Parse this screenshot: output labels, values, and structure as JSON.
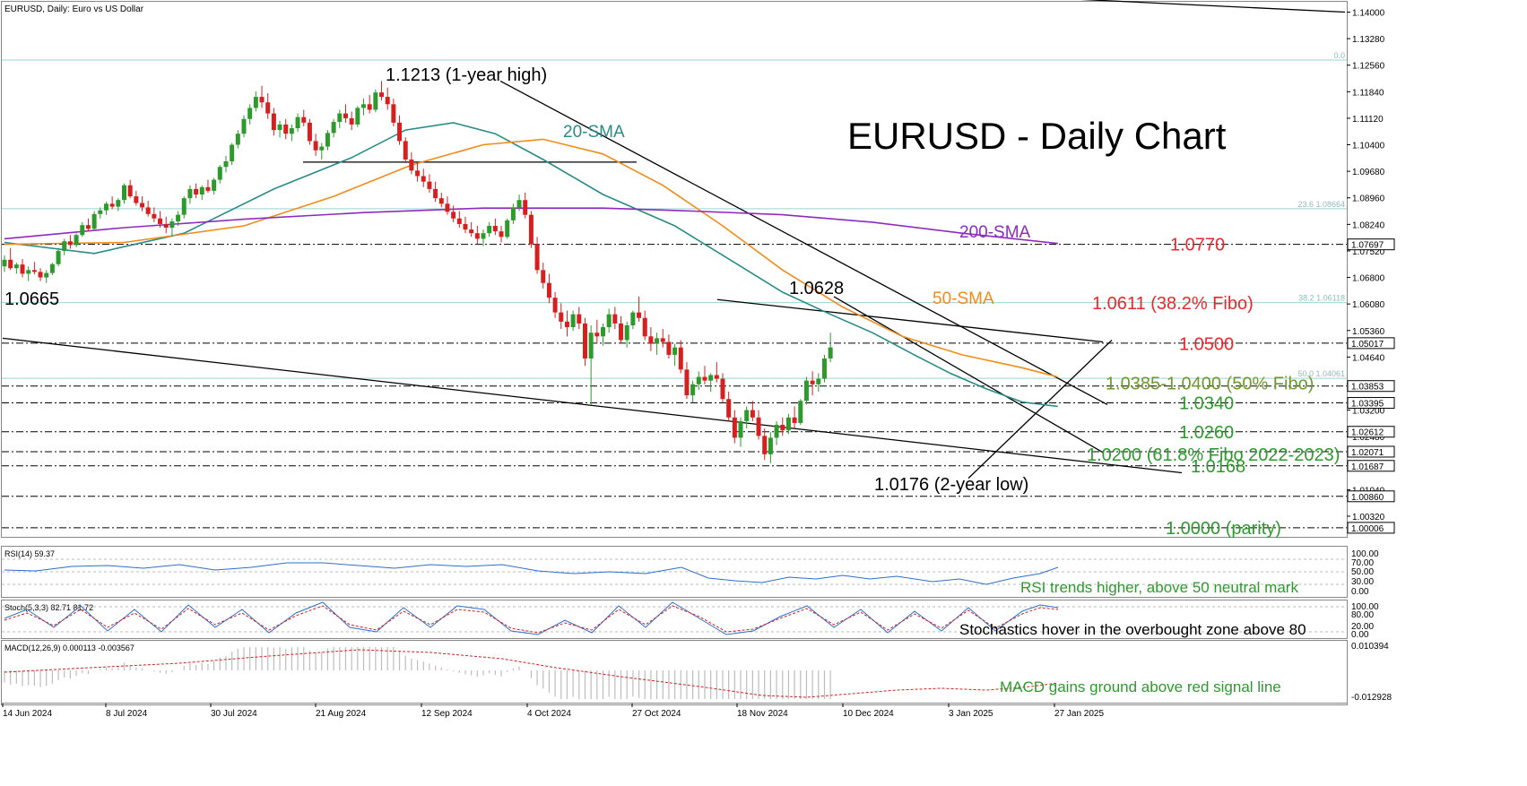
{
  "chart_data": {
    "type": "candlestick",
    "header": "EURUSD, Daily:  Euro vs US Dollar",
    "title": "EURUSD - Daily Chart",
    "x_ticks": [
      "14 Jun 2024",
      "8 Jul 2024",
      "30 Jul 2024",
      "21 Aug 2024",
      "12 Sep 2024",
      "4 Oct 2024",
      "27 Oct 2024",
      "18 Nov 2024",
      "10 Dec 2024",
      "3 Jan 2025",
      "27 Jan 2025"
    ],
    "y_ticks": [
      "1.14000",
      "1.13280",
      "1.12560",
      "1.11840",
      "1.11120",
      "1.10400",
      "1.09680",
      "1.08960",
      "1.08240",
      "1.07520",
      "1.06800",
      "1.06080",
      "1.05360",
      "1.04640",
      "1.03920",
      "1.03200",
      "1.02480",
      "1.01760",
      "1.01040",
      "1.00320"
    ],
    "ylim": [
      0.9976,
      1.1428
    ],
    "price_tags": [
      {
        "label": "1.07697",
        "value": 1.07697
      },
      {
        "label": "1.05017",
        "value": 1.05017
      },
      {
        "label": "1.03853",
        "value": 1.03853
      },
      {
        "label": "1.03395",
        "value": 1.03395
      },
      {
        "label": "1.02612",
        "value": 1.02612
      },
      {
        "label": "1.02071",
        "value": 1.02071
      },
      {
        "label": "1.01687",
        "value": 1.01687
      },
      {
        "label": "1.00860",
        "value": 1.0086
      },
      {
        "label": "1.00006",
        "value": 1.00006
      }
    ],
    "fibo": [
      {
        "label": "0.0",
        "value": 1.127
      },
      {
        "label": "23.6 1.08664",
        "value": 1.08664
      },
      {
        "label": "38.2 1.06118",
        "value": 1.06118
      },
      {
        "label": "50.0 1.04061",
        "value": 1.04061
      }
    ],
    "level_labels": [
      {
        "text": "1.0770",
        "value": 1.077,
        "color": "#e8282d"
      },
      {
        "text": "1.0611 (38.2% Fibo)",
        "value": 1.0611,
        "color": "#e8282d"
      },
      {
        "text": "1.0500",
        "value": 1.05,
        "color": "#e8282d"
      },
      {
        "text": "1.0385-1.0400 (50% Fibo)",
        "value": 1.0393,
        "color": "#6e9a2a"
      },
      {
        "text": "1.0340",
        "value": 1.034,
        "color": "#2e9a2e"
      },
      {
        "text": "1.0260",
        "value": 1.026,
        "color": "#2e9a2e"
      },
      {
        "text": "1.0200 (61.8% Fibo 2022-2023)",
        "value": 1.02,
        "color": "#2e9a2e"
      },
      {
        "text": "1.0168",
        "value": 1.0168,
        "color": "#2e9a2e"
      },
      {
        "text": "1.0000 (parity)",
        "value": 1.0,
        "color": "#2e9a2e"
      }
    ],
    "annotations": [
      {
        "text": "1.1213 (1-year high)"
      },
      {
        "text": "1.0665"
      },
      {
        "text": "1.0628"
      },
      {
        "text": "1.0176 (2-year low)"
      }
    ],
    "series": [
      {
        "name": "20-SMA",
        "color": "#2a8a8a",
        "points": [
          [
            0,
            1.0775
          ],
          [
            15,
            1.0745
          ],
          [
            30,
            1.08
          ],
          [
            45,
            1.092
          ],
          [
            58,
            1.1005
          ],
          [
            67,
            1.108
          ],
          [
            75,
            1.11
          ],
          [
            82,
            1.107
          ],
          [
            90,
            1.1
          ],
          [
            100,
            1.0905
          ],
          [
            112,
            1.082
          ],
          [
            122,
            1.072
          ],
          [
            130,
            1.064
          ],
          [
            138,
            1.058
          ],
          [
            145,
            1.053
          ],
          [
            152,
            1.047
          ],
          [
            158,
            1.042
          ],
          [
            164,
            1.0378
          ],
          [
            170,
            1.0342
          ],
          [
            176,
            1.033
          ]
        ]
      },
      {
        "name": "50-SMA",
        "color": "#f08c19",
        "points": [
          [
            0,
            1.077
          ],
          [
            20,
            1.0775
          ],
          [
            40,
            1.082
          ],
          [
            55,
            1.09
          ],
          [
            68,
            1.0985
          ],
          [
            80,
            1.104
          ],
          [
            90,
            1.1055
          ],
          [
            100,
            1.1015
          ],
          [
            110,
            1.093
          ],
          [
            120,
            1.082
          ],
          [
            130,
            1.07
          ],
          [
            140,
            1.06
          ],
          [
            150,
            1.052
          ],
          [
            160,
            1.047
          ],
          [
            170,
            1.0435
          ],
          [
            176,
            1.041
          ]
        ]
      },
      {
        "name": "200-SMA",
        "color": "#8e2bbf",
        "points": [
          [
            0,
            1.0785
          ],
          [
            20,
            1.0815
          ],
          [
            40,
            1.0838
          ],
          [
            60,
            1.0856
          ],
          [
            80,
            1.0868
          ],
          [
            100,
            1.0868
          ],
          [
            115,
            1.086
          ],
          [
            130,
            1.085
          ],
          [
            145,
            1.083
          ],
          [
            160,
            1.08
          ],
          [
            176,
            1.0772
          ]
        ]
      }
    ],
    "candles": [
      [
        1.071,
        1.074,
        1.0695,
        1.0728
      ],
      [
        1.0728,
        1.076,
        1.07,
        1.0705
      ],
      [
        1.0705,
        1.072,
        1.069,
        1.0715
      ],
      [
        1.0715,
        1.073,
        1.068,
        1.069
      ],
      [
        1.069,
        1.071,
        1.067,
        1.07
      ],
      [
        1.07,
        1.0722,
        1.0688,
        1.0695
      ],
      [
        1.0695,
        1.0705,
        1.067,
        1.068
      ],
      [
        1.068,
        1.07,
        1.0665,
        1.0692
      ],
      [
        1.0692,
        1.072,
        1.0686,
        1.0716
      ],
      [
        1.0716,
        1.076,
        1.071,
        1.0752
      ],
      [
        1.0752,
        1.0785,
        1.074,
        1.0778
      ],
      [
        1.0778,
        1.0795,
        1.0758,
        1.0768
      ],
      [
        1.0768,
        1.08,
        1.0762,
        1.0795
      ],
      [
        1.0795,
        1.083,
        1.079,
        1.0822
      ],
      [
        1.0822,
        1.084,
        1.0805,
        1.0812
      ],
      [
        1.0812,
        1.086,
        1.0808,
        1.0852
      ],
      [
        1.0852,
        1.087,
        1.084,
        1.0862
      ],
      [
        1.0862,
        1.0885,
        1.085,
        1.088
      ],
      [
        1.088,
        1.09,
        1.0865,
        1.0872
      ],
      [
        1.0872,
        1.0895,
        1.086,
        1.089
      ],
      [
        1.089,
        1.0935,
        1.088,
        1.093
      ],
      [
        1.093,
        1.0945,
        1.0895,
        1.09
      ],
      [
        1.09,
        1.0915,
        1.0875,
        1.0882
      ],
      [
        1.0882,
        1.09,
        1.086,
        1.087
      ],
      [
        1.087,
        1.0888,
        1.0845,
        1.0852
      ],
      [
        1.0852,
        1.087,
        1.083,
        1.084
      ],
      [
        1.084,
        1.086,
        1.0815,
        1.0825
      ],
      [
        1.0825,
        1.0845,
        1.08,
        1.0815
      ],
      [
        1.0815,
        1.084,
        1.079,
        1.0832
      ],
      [
        1.0832,
        1.086,
        1.082,
        1.085
      ],
      [
        1.085,
        1.09,
        1.084,
        1.0895
      ],
      [
        1.0895,
        1.093,
        1.088,
        1.092
      ],
      [
        1.092,
        1.0935,
        1.0895,
        1.0905
      ],
      [
        1.0905,
        1.093,
        1.089,
        1.0925
      ],
      [
        1.0925,
        1.0945,
        1.091,
        1.0915
      ],
      [
        1.0915,
        1.095,
        1.0905,
        1.0945
      ],
      [
        1.0945,
        1.0985,
        1.0935,
        1.098
      ],
      [
        1.098,
        1.101,
        1.0965,
        1.0995
      ],
      [
        1.0995,
        1.1045,
        1.0985,
        1.104
      ],
      [
        1.104,
        1.108,
        1.103,
        1.107
      ],
      [
        1.107,
        1.112,
        1.106,
        1.111
      ],
      [
        1.111,
        1.115,
        1.1095,
        1.114
      ],
      [
        1.114,
        1.1185,
        1.113,
        1.117
      ],
      [
        1.117,
        1.12,
        1.114,
        1.1155
      ],
      [
        1.1155,
        1.118,
        1.111,
        1.1125
      ],
      [
        1.1125,
        1.114,
        1.1065,
        1.108
      ],
      [
        1.108,
        1.1105,
        1.106,
        1.1095
      ],
      [
        1.1095,
        1.111,
        1.1055,
        1.107
      ],
      [
        1.107,
        1.1095,
        1.105,
        1.1085
      ],
      [
        1.1085,
        1.1125,
        1.1075,
        1.1115
      ],
      [
        1.1115,
        1.1135,
        1.109,
        1.11
      ],
      [
        1.11,
        1.111,
        1.104,
        1.105
      ],
      [
        1.105,
        1.107,
        1.101,
        1.1025
      ],
      [
        1.1025,
        1.1045,
        1.1,
        1.1035
      ],
      [
        1.1035,
        1.108,
        1.1025,
        1.1072
      ],
      [
        1.1072,
        1.111,
        1.106,
        1.1102
      ],
      [
        1.1102,
        1.1135,
        1.1085,
        1.1125
      ],
      [
        1.1125,
        1.115,
        1.11,
        1.1112
      ],
      [
        1.1112,
        1.113,
        1.108,
        1.1095
      ],
      [
        1.1095,
        1.1145,
        1.1088,
        1.114
      ],
      [
        1.114,
        1.1165,
        1.112,
        1.115
      ],
      [
        1.115,
        1.1175,
        1.1125,
        1.1135
      ],
      [
        1.1135,
        1.119,
        1.1128,
        1.1182
      ],
      [
        1.1182,
        1.1213,
        1.116,
        1.117
      ],
      [
        1.117,
        1.1195,
        1.1135,
        1.115
      ],
      [
        1.115,
        1.1165,
        1.109,
        1.11
      ],
      [
        1.11,
        1.112,
        1.104,
        1.105
      ],
      [
        1.105,
        1.106,
        1.099,
        1.1
      ],
      [
        1.1,
        1.102,
        1.096,
        1.097
      ],
      [
        1.097,
        1.099,
        1.094,
        1.0955
      ],
      [
        1.0955,
        1.0975,
        1.0925,
        1.094
      ],
      [
        1.094,
        1.096,
        1.091,
        1.092
      ],
      [
        1.092,
        1.094,
        1.0885,
        1.0895
      ],
      [
        1.0895,
        1.091,
        1.087,
        1.088
      ],
      [
        1.088,
        1.09,
        1.085,
        1.0858
      ],
      [
        1.0858,
        1.0875,
        1.083,
        1.084
      ],
      [
        1.084,
        1.086,
        1.0815,
        1.0825
      ],
      [
        1.0825,
        1.0845,
        1.08,
        1.081
      ],
      [
        1.081,
        1.083,
        1.079,
        1.08
      ],
      [
        1.08,
        1.082,
        1.077,
        1.0785
      ],
      [
        1.0785,
        1.081,
        1.0765,
        1.08
      ],
      [
        1.08,
        1.083,
        1.079,
        1.082
      ],
      [
        1.082,
        1.084,
        1.0795,
        1.0805
      ],
      [
        1.0805,
        1.082,
        1.0775,
        1.079
      ],
      [
        1.079,
        1.084,
        1.0785,
        1.0835
      ],
      [
        1.0835,
        1.088,
        1.0825,
        1.087
      ],
      [
        1.087,
        1.0905,
        1.086,
        1.089
      ],
      [
        1.089,
        1.091,
        1.084,
        1.085
      ],
      [
        1.085,
        1.086,
        1.076,
        1.077
      ],
      [
        1.077,
        1.079,
        1.069,
        1.07
      ],
      [
        1.07,
        1.072,
        1.065,
        1.0665
      ],
      [
        1.0665,
        1.069,
        1.061,
        1.0625
      ],
      [
        1.0625,
        1.064,
        1.057,
        1.0585
      ],
      [
        1.0585,
        1.061,
        1.054,
        1.056
      ],
      [
        1.056,
        1.059,
        1.052,
        1.0545
      ],
      [
        1.0545,
        1.059,
        1.0535,
        1.058
      ],
      [
        1.058,
        1.06,
        1.054,
        1.0555
      ],
      [
        1.0555,
        1.057,
        1.044,
        1.046
      ],
      [
        1.046,
        1.055,
        1.0335,
        1.053
      ],
      [
        1.053,
        1.0565,
        1.05,
        1.052
      ],
      [
        1.052,
        1.0555,
        1.0495,
        1.0545
      ],
      [
        1.0545,
        1.0595,
        1.053,
        1.058
      ],
      [
        1.058,
        1.06,
        1.054,
        1.0555
      ],
      [
        1.0555,
        1.0575,
        1.05,
        1.051
      ],
      [
        1.051,
        1.056,
        1.049,
        1.055
      ],
      [
        1.055,
        1.059,
        1.054,
        1.0585
      ],
      [
        1.0585,
        1.0628,
        1.056,
        1.057
      ],
      [
        1.057,
        1.059,
        1.051,
        1.052
      ],
      [
        1.052,
        1.0545,
        1.048,
        1.05
      ],
      [
        1.05,
        1.053,
        1.047,
        1.0515
      ],
      [
        1.0515,
        1.054,
        1.049,
        1.0505
      ],
      [
        1.0505,
        1.0525,
        1.046,
        1.047
      ],
      [
        1.047,
        1.05,
        1.044,
        1.049
      ],
      [
        1.049,
        1.051,
        1.042,
        1.043
      ],
      [
        1.043,
        1.045,
        1.035,
        1.036
      ],
      [
        1.036,
        1.04,
        1.034,
        1.039
      ],
      [
        1.039,
        1.0425,
        1.0375,
        1.041
      ],
      [
        1.041,
        1.044,
        1.039,
        1.04
      ],
      [
        1.04,
        1.042,
        1.037,
        1.0415
      ],
      [
        1.0415,
        1.045,
        1.0395,
        1.0405
      ],
      [
        1.0405,
        1.042,
        1.034,
        1.035
      ],
      [
        1.035,
        1.037,
        1.029,
        1.03
      ],
      [
        1.03,
        1.032,
        1.023,
        1.0245
      ],
      [
        1.0245,
        1.03,
        1.022,
        1.029
      ],
      [
        1.029,
        1.033,
        1.027,
        1.032
      ],
      [
        1.032,
        1.0345,
        1.029,
        1.03
      ],
      [
        1.03,
        1.032,
        1.024,
        1.025
      ],
      [
        1.025,
        1.027,
        1.0185,
        1.02
      ],
      [
        1.02,
        1.026,
        1.0176,
        1.0245
      ],
      [
        1.0245,
        1.029,
        1.0225,
        1.028
      ],
      [
        1.028,
        1.03,
        1.025,
        1.0265
      ],
      [
        1.0265,
        1.031,
        1.0255,
        1.03
      ],
      [
        1.03,
        1.033,
        1.027,
        1.0285
      ],
      [
        1.0285,
        1.035,
        1.028,
        1.0345
      ],
      [
        1.0345,
        1.041,
        1.0335,
        1.04
      ],
      [
        1.04,
        1.0425,
        1.036,
        1.039
      ],
      [
        1.039,
        1.042,
        1.037,
        1.0405
      ],
      [
        1.0405,
        1.047,
        1.0395,
        1.046
      ],
      [
        1.046,
        1.053,
        1.045,
        1.049
      ]
    ],
    "channel_lines": [
      {
        "x1": 3,
        "y1": 1.0515,
        "x2": 1318,
        "y2": 1.015
      },
      {
        "x1": 1200,
        "y1": 1.1435,
        "x2": 1500,
        "y2": 1.14
      },
      {
        "x1": 558,
        "y1": 1.1213,
        "x2": 1235,
        "y2": 1.0335
      },
      {
        "x1": 800,
        "y1": 1.062,
        "x2": 1230,
        "y2": 1.0505
      },
      {
        "x1": 930,
        "y1": 1.0628,
        "x2": 1230,
        "y2": 1.0205
      },
      {
        "x1": 1080,
        "y1": 1.0135,
        "x2": 1240,
        "y2": 1.051
      },
      {
        "x1": 338,
        "y1": 1.0993,
        "x2": 710,
        "y2": 1.0993
      }
    ],
    "indicators": [
      {
        "name": "RSI(14) 59.37",
        "scale": [
          "100.00",
          "70.00",
          "50.00",
          "30.00",
          "0.00"
        ],
        "comment": "RSI trends higher, above 50 neutral mark"
      },
      {
        "name": "Stoch(5,3,3) 82.71 81.72",
        "scale": [
          "100.00",
          "80.00",
          "20.00",
          "0.00"
        ],
        "comment": "Stochastics hover in the overbought zone above 80"
      },
      {
        "name": "MACD(12,26,9) 0.000113 -0.003567",
        "scale": [
          "0.010394",
          "-0.012928"
        ],
        "comment": "MACD gains ground above red signal line"
      }
    ]
  }
}
